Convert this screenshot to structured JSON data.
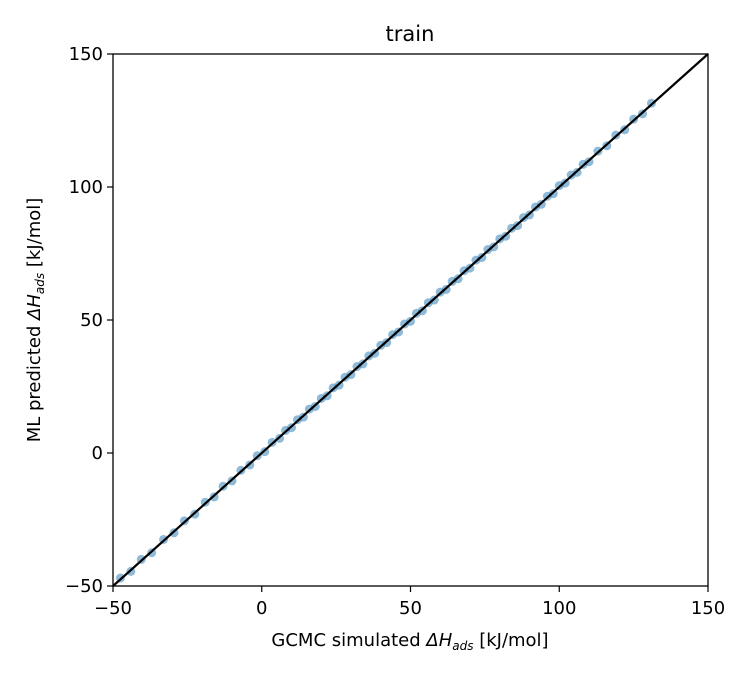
{
  "chart_data": {
    "type": "scatter",
    "title": "train",
    "xlabel": {
      "prefix": "GCMC simulated ",
      "symbol": "ΔH",
      "sub": "ads",
      "suffix": " [kJ/mol]"
    },
    "ylabel": {
      "prefix": "ML predicted ",
      "symbol": "ΔH",
      "sub": "ads",
      "suffix": " [kJ/mol]"
    },
    "xlim": [
      -50,
      150
    ],
    "ylim": [
      -50,
      150
    ],
    "xticks": [
      -50,
      0,
      50,
      100,
      150
    ],
    "yticks": [
      -50,
      0,
      50,
      100,
      150
    ],
    "grid": false,
    "reference_line": {
      "from": [
        -50,
        -50
      ],
      "to": [
        150,
        150
      ],
      "color": "#000000"
    },
    "point_color": "#1f77b4",
    "point_alpha": 0.5,
    "series": [
      {
        "x": [
          -47.5,
          -44.0,
          -40.5,
          -37.0,
          -33.0,
          -29.5,
          -26.0,
          -22.5,
          -19.0,
          -16.0,
          -13.0,
          -10.0,
          -7.0,
          -4.0,
          -1.5,
          1.0,
          3.5,
          6.0,
          8.0,
          10.0,
          12.0,
          14.0,
          16.0,
          18.0,
          20.0,
          22.0,
          24.0,
          26.0,
          28.0,
          30.0,
          32.0,
          34.0,
          36.0,
          38.0,
          40.0,
          42.0,
          44.0,
          46.0,
          48.0,
          50.0,
          52.0,
          54.0,
          56.0,
          58.0,
          60.0,
          62.0,
          64.0,
          66.0,
          68.0,
          70.0,
          72.0,
          74.0,
          76.0,
          78.0,
          80.0,
          82.0,
          84.0,
          86.0,
          88.0,
          90.0,
          92.0,
          94.0,
          96.0,
          98.0,
          100.0,
          102.0,
          104.0,
          106.0,
          108.0,
          110.0,
          113.0,
          116.0,
          119.0,
          122.0,
          125.0,
          128.0,
          131.0
        ],
        "y": [
          -47.0,
          -44.5,
          -40.0,
          -37.5,
          -32.5,
          -30.0,
          -25.5,
          -23.0,
          -18.5,
          -16.5,
          -12.5,
          -10.5,
          -6.5,
          -4.5,
          -1.0,
          0.5,
          4.0,
          5.5,
          8.5,
          9.5,
          12.5,
          13.5,
          16.5,
          17.5,
          20.5,
          21.5,
          24.5,
          25.5,
          28.5,
          29.5,
          32.5,
          33.5,
          36.5,
          37.5,
          40.5,
          41.5,
          44.5,
          45.5,
          48.5,
          49.5,
          52.5,
          53.5,
          56.5,
          57.5,
          60.5,
          61.5,
          64.5,
          65.5,
          68.5,
          69.5,
          72.5,
          73.5,
          76.5,
          77.5,
          80.5,
          81.5,
          84.5,
          85.5,
          88.5,
          89.5,
          92.5,
          93.5,
          96.5,
          97.5,
          100.5,
          101.5,
          104.5,
          105.5,
          108.5,
          109.5,
          113.5,
          115.5,
          119.5,
          121.5,
          125.5,
          127.5,
          131.5
        ]
      }
    ]
  }
}
